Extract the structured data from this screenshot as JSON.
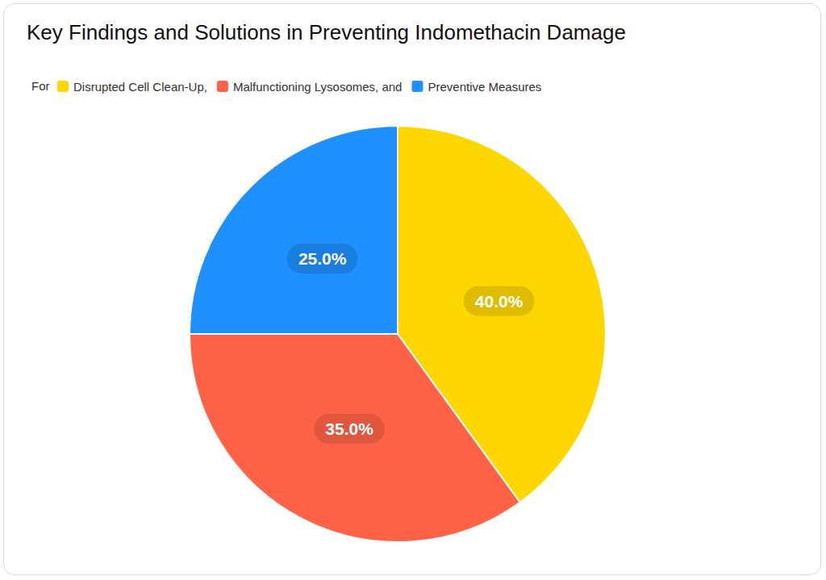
{
  "chart_data": {
    "type": "pie",
    "title": "Key Findings and Solutions in Preventing Indomethacin Damage",
    "legend_prefix": "For",
    "legend_labels": [
      "Disrupted Cell Clean-Up,",
      "Malfunctioning Lysosomes, and",
      "Preventive Measures"
    ],
    "categories": [
      "Disrupted Cell Clean-Up",
      "Malfunctioning Lysosomes",
      "Preventive Measures"
    ],
    "values": [
      40,
      35,
      25
    ],
    "value_labels": [
      "40.0%",
      "35.0%",
      "25.0%"
    ],
    "colors": [
      "#FFD700",
      "#FF6347",
      "#1E90FF"
    ],
    "data_labels": true,
    "legend": "top-left"
  }
}
